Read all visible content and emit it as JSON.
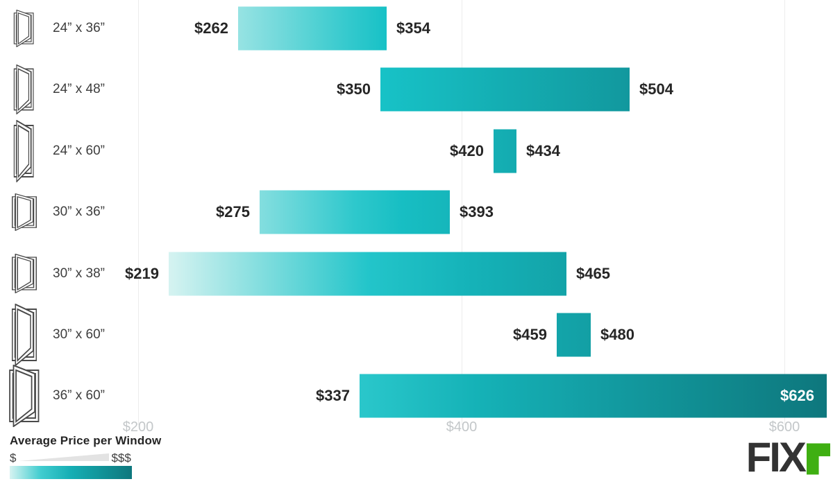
{
  "chart_data": {
    "type": "range_bar",
    "orientation": "horizontal",
    "title": "",
    "rows": [
      {
        "label": "24” x 36”",
        "icon": "open-casement-window-icon",
        "width_in": 24,
        "height_in": 36,
        "min": 262,
        "max": 354,
        "min_label": "$262",
        "max_label": "$354"
      },
      {
        "label": "24” x 48”",
        "icon": "open-casement-window-icon",
        "width_in": 24,
        "height_in": 48,
        "min": 350,
        "max": 504,
        "min_label": "$350",
        "max_label": "$504"
      },
      {
        "label": "24” x 60”",
        "icon": "open-casement-window-icon",
        "width_in": 24,
        "height_in": 60,
        "min": 420,
        "max": 434,
        "min_label": "$420",
        "max_label": "$434"
      },
      {
        "label": "30” x 36”",
        "icon": "open-casement-window-icon",
        "width_in": 30,
        "height_in": 36,
        "min": 275,
        "max": 393,
        "min_label": "$275",
        "max_label": "$393"
      },
      {
        "label": "30” x 38”",
        "icon": "open-casement-window-icon",
        "width_in": 30,
        "height_in": 38,
        "min": 219,
        "max": 465,
        "min_label": "$219",
        "max_label": "$465"
      },
      {
        "label": "30” x 60”",
        "icon": "open-casement-window-icon",
        "width_in": 30,
        "height_in": 60,
        "min": 459,
        "max": 480,
        "min_label": "$459",
        "max_label": "$480"
      },
      {
        "label": "36” x 60”",
        "icon": "open-casement-window-icon",
        "width_in": 36,
        "height_in": 60,
        "min": 337,
        "max": 626,
        "min_label": "$337",
        "max_label": "$626"
      }
    ],
    "x_axis": {
      "ticks": [
        {
          "label": "$200",
          "value": 200
        },
        {
          "label": "$400",
          "value": 400
        },
        {
          "label": "$600",
          "value": 600
        }
      ],
      "value_min": 219,
      "value_max": 626,
      "grid": true
    },
    "gradient_stops": [
      {
        "value": 219,
        "color": "#d6f3f1"
      },
      {
        "value": 350,
        "color": "#17c2c7"
      },
      {
        "value": 626,
        "color": "#0e777d"
      }
    ]
  },
  "legend": {
    "title": "Average Price per Window",
    "low_label": "$",
    "high_label": "$$$",
    "wedge_color": "#e3e3e3"
  },
  "logo": {
    "text": "FIX",
    "accent_letter": "r",
    "text_color": "#333333",
    "accent_color": "#3faf12"
  },
  "style": {
    "gridline_color": "#ececec",
    "axis_label_color": "#c3c7c9",
    "price_label_color": "#262626",
    "row_label_color": "#3d3d3d",
    "inside_label_color": "#ffffff"
  }
}
